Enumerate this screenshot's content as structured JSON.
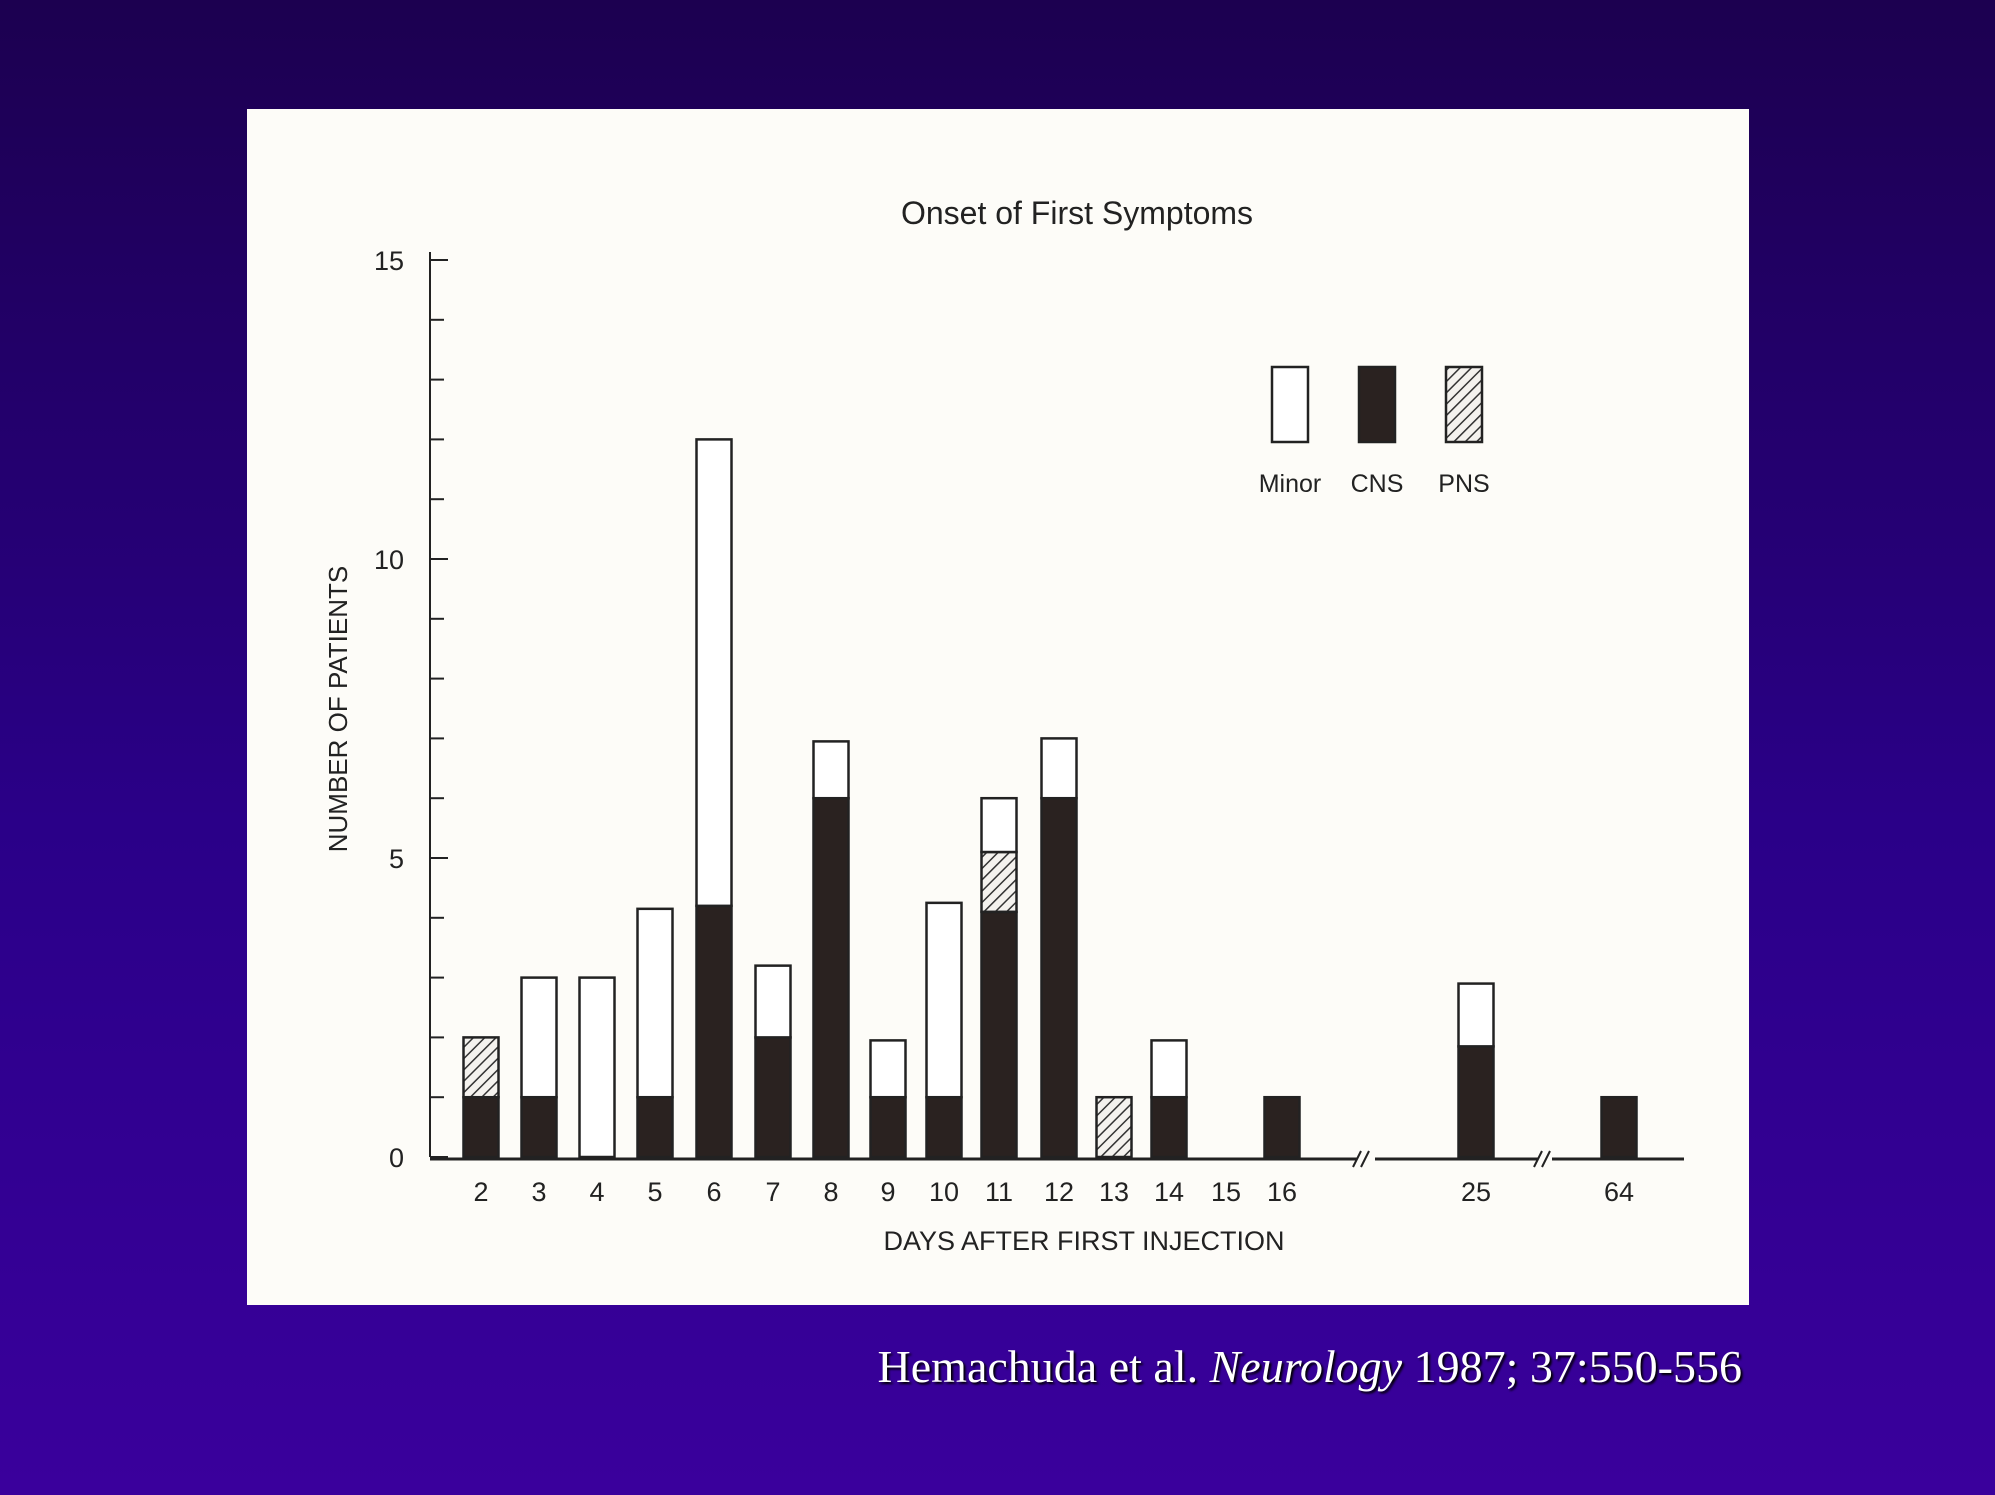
{
  "colors": {
    "minor": "#ffffff",
    "cns": "#2a2220",
    "pns": "hatched",
    "outline": "#222222"
  },
  "chart_data": {
    "type": "bar",
    "stacked": true,
    "title": "Onset of First Symptoms",
    "xlabel": "DAYS AFTER FIRST INJECTION",
    "ylabel": "NUMBER OF PATIENTS",
    "ylim": [
      0,
      15
    ],
    "yticks": [
      "0",
      "5",
      "10",
      "15"
    ],
    "legend": {
      "placement": "top-right",
      "labels": [
        "Minor",
        "CNS",
        "PNS"
      ]
    },
    "axis_breaks": [
      "16-25",
      "25-64"
    ],
    "categories": [
      "2",
      "3",
      "4",
      "5",
      "6",
      "7",
      "8",
      "9",
      "10",
      "11",
      "12",
      "13",
      "14",
      "15",
      "16",
      "25",
      "64"
    ],
    "series": [
      {
        "name": "CNS",
        "values": [
          1,
          1,
          0,
          1,
          4.2,
          2,
          6,
          1,
          1,
          4.1,
          6,
          0,
          1,
          0,
          1,
          1.85,
          1
        ]
      },
      {
        "name": "PNS",
        "values": [
          1,
          0,
          0,
          0,
          0,
          0,
          0,
          0,
          0,
          1,
          0,
          1,
          0,
          0,
          0,
          0,
          0
        ]
      },
      {
        "name": "Minor",
        "values": [
          0,
          2,
          3,
          3.15,
          7.8,
          1.2,
          0.95,
          0.95,
          3.25,
          0.9,
          1,
          0,
          0.95,
          0,
          0,
          1.05,
          0
        ]
      }
    ]
  },
  "citation": {
    "authors": "Hemachuda et al.",
    "journal": "Neurology",
    "details": "1987; 37:550-556"
  }
}
